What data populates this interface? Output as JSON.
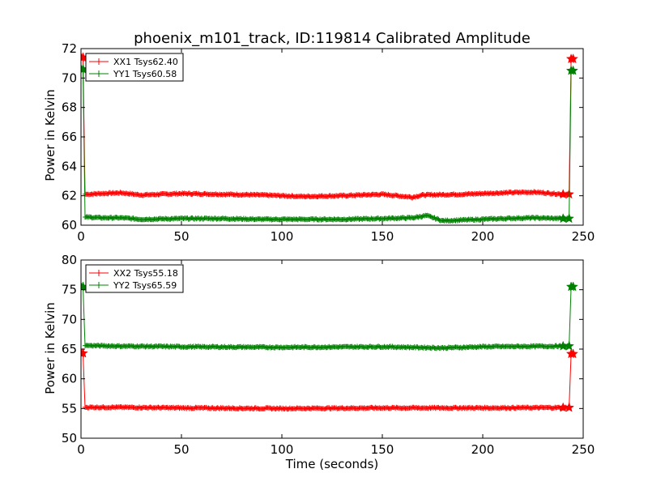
{
  "chart_data": [
    {
      "type": "line",
      "title": "phoenix_m101_track, ID:119814 Calibrated Amplitude",
      "xlabel": "",
      "ylabel": "Power in Kelvin",
      "xlim": [
        0,
        250
      ],
      "ylim": [
        60,
        72
      ],
      "xticks": [
        "0",
        "50",
        "100",
        "150",
        "200",
        "250"
      ],
      "yticks": [
        "60",
        "62",
        "64",
        "66",
        "68",
        "70",
        "72"
      ],
      "grid": false,
      "legend_position": "top-left",
      "series": [
        {
          "name": "XX1 Tsys62.40",
          "color": "#ff0000",
          "x": [
            0,
            1,
            2,
            3,
            10,
            20,
            30,
            50,
            70,
            90,
            110,
            130,
            150,
            165,
            170,
            190,
            210,
            225,
            240,
            243,
            244,
            245
          ],
          "y": [
            71.4,
            71.4,
            62.1,
            62.1,
            62.15,
            62.2,
            62.05,
            62.15,
            62.1,
            62.05,
            61.95,
            62.0,
            62.1,
            61.9,
            62.05,
            62.1,
            62.2,
            62.25,
            62.1,
            62.1,
            71.3,
            71.3
          ]
        },
        {
          "name": "YY1 Tsys60.58",
          "color": "#008000",
          "x": [
            0,
            1,
            2,
            3,
            10,
            20,
            30,
            50,
            70,
            90,
            110,
            130,
            150,
            165,
            172,
            180,
            190,
            210,
            225,
            240,
            243,
            244,
            245
          ],
          "y": [
            70.6,
            70.6,
            60.55,
            60.55,
            60.5,
            60.5,
            60.4,
            60.45,
            60.45,
            60.4,
            60.4,
            60.4,
            60.45,
            60.5,
            60.65,
            60.3,
            60.35,
            60.45,
            60.5,
            60.45,
            60.45,
            70.5,
            70.5
          ]
        }
      ]
    },
    {
      "type": "line",
      "title": "",
      "xlabel": "Time (seconds)",
      "ylabel": "Power in Kelvin",
      "xlim": [
        0,
        250
      ],
      "ylim": [
        50,
        80
      ],
      "xticks": [
        "0",
        "50",
        "100",
        "150",
        "200",
        "250"
      ],
      "yticks": [
        "50",
        "55",
        "60",
        "65",
        "70",
        "75",
        "80"
      ],
      "grid": false,
      "legend_position": "top-left",
      "series": [
        {
          "name": "XX2 Tsys55.18",
          "color": "#ff0000",
          "x": [
            0,
            1,
            2,
            3,
            20,
            50,
            100,
            150,
            200,
            240,
            243,
            244,
            245
          ],
          "y": [
            64.3,
            64.3,
            55.2,
            55.2,
            55.2,
            55.1,
            55.0,
            55.1,
            55.1,
            55.15,
            55.15,
            64.2,
            64.2
          ]
        },
        {
          "name": "YY2 Tsys65.59",
          "color": "#008000",
          "x": [
            0,
            1,
            2,
            3,
            20,
            50,
            100,
            150,
            180,
            200,
            240,
            243,
            244,
            245
          ],
          "y": [
            75.5,
            75.5,
            65.6,
            65.6,
            65.5,
            65.4,
            65.3,
            65.4,
            65.2,
            65.4,
            65.5,
            65.5,
            75.5,
            75.5
          ]
        }
      ]
    }
  ]
}
